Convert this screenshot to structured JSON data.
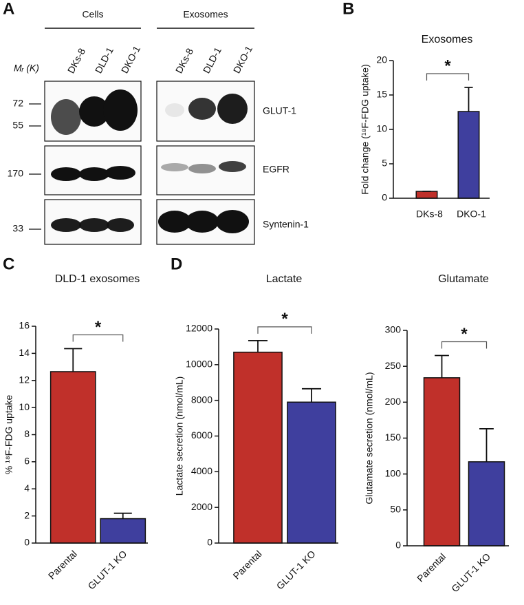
{
  "blot": {
    "panel_label": "A",
    "groups": [
      "Cells",
      "Exosomes"
    ],
    "lanes": [
      "DKs-8",
      "DLD-1",
      "DKO-1",
      "DKs-8",
      "DLD-1",
      "DKO-1"
    ],
    "mr_label": "Mᵣ (K)",
    "markers": [
      72,
      55,
      170,
      33
    ],
    "proteins": [
      "GLUT-1",
      "EGFR",
      "Syntenin-1"
    ]
  },
  "chart_data": [
    {
      "type": "bar",
      "panel_label": "B",
      "title": "Exosomes",
      "ylabel": "Fold change (¹⁸F-FDG uptake)",
      "categories": [
        "DKs-8",
        "DKO-1"
      ],
      "values": [
        1,
        12.6
      ],
      "errors": [
        0,
        3.5
      ],
      "colors": [
        "#c0302a",
        "#3f3f9e"
      ],
      "ylim": [
        0,
        20
      ],
      "yticks": [
        0,
        5,
        10,
        15,
        20
      ],
      "significance": "*"
    },
    {
      "type": "bar",
      "panel_label": "C",
      "title": "DLD-1 exosomes",
      "ylabel": "% ¹⁸F-FDG uptake",
      "categories": [
        "Parental",
        "GLUT-1 KO"
      ],
      "values": [
        12.65,
        1.8
      ],
      "errors": [
        1.7,
        0.4
      ],
      "colors": [
        "#c0302a",
        "#3f3f9e"
      ],
      "ylim": [
        0,
        16
      ],
      "yticks": [
        0,
        2,
        4,
        6,
        8,
        10,
        12,
        14,
        16
      ],
      "significance": "*"
    },
    {
      "type": "bar",
      "panel_label": "D",
      "title": "Lactate",
      "ylabel": "Lactate secretion (nmol/mL)",
      "categories": [
        "Parental",
        "GLUT-1 KO"
      ],
      "values": [
        10700,
        7900
      ],
      "errors": [
        650,
        750
      ],
      "colors": [
        "#c0302a",
        "#3f3f9e"
      ],
      "ylim": [
        0,
        12000
      ],
      "yticks": [
        0,
        2000,
        4000,
        6000,
        8000,
        10000,
        12000
      ],
      "significance": "*"
    },
    {
      "type": "bar",
      "title": "Glutamate",
      "ylabel": "Glutamate secretion (nmol/mL)",
      "categories": [
        "Parental",
        "GLUT-1 KO"
      ],
      "values": [
        234,
        117
      ],
      "errors": [
        31,
        46
      ],
      "colors": [
        "#c0302a",
        "#3f3f9e"
      ],
      "ylim": [
        0,
        300
      ],
      "yticks": [
        0,
        50,
        100,
        150,
        200,
        250,
        300
      ],
      "significance": "*"
    }
  ]
}
